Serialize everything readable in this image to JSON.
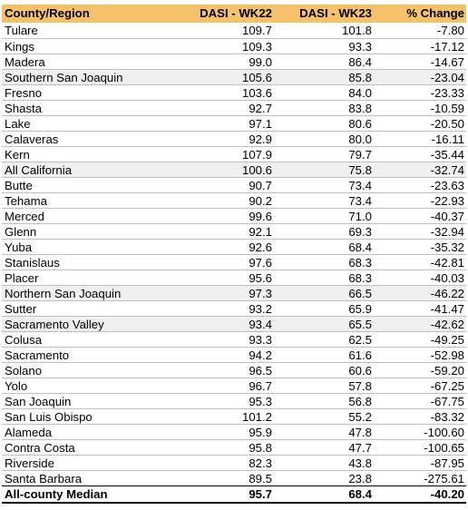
{
  "table": {
    "headers": [
      "County/Region",
      "DASI - WK22",
      "DASI - WK23",
      "% Change"
    ],
    "rows": [
      {
        "name": "Tulare",
        "wk22": "109.7",
        "wk23": "101.8",
        "change": "-7.80",
        "highlight": false
      },
      {
        "name": "Kings",
        "wk22": "109.3",
        "wk23": "93.3",
        "change": "-17.12",
        "highlight": false
      },
      {
        "name": "Madera",
        "wk22": "99.0",
        "wk23": "86.4",
        "change": "-14.67",
        "highlight": false
      },
      {
        "name": "Southern San Joaquin",
        "wk22": "105.6",
        "wk23": "85.8",
        "change": "-23.04",
        "highlight": true
      },
      {
        "name": "Fresno",
        "wk22": "103.6",
        "wk23": "84.0",
        "change": "-23.33",
        "highlight": false
      },
      {
        "name": "Shasta",
        "wk22": "92.7",
        "wk23": "83.8",
        "change": "-10.59",
        "highlight": false
      },
      {
        "name": "Lake",
        "wk22": "97.1",
        "wk23": "80.6",
        "change": "-20.50",
        "highlight": false
      },
      {
        "name": "Calaveras",
        "wk22": "92.9",
        "wk23": "80.0",
        "change": "-16.11",
        "highlight": false
      },
      {
        "name": "Kern",
        "wk22": "107.9",
        "wk23": "79.7",
        "change": "-35.44",
        "highlight": false
      },
      {
        "name": "All California",
        "wk22": "100.6",
        "wk23": "75.8",
        "change": "-32.74",
        "highlight": true
      },
      {
        "name": "Butte",
        "wk22": "90.7",
        "wk23": "73.4",
        "change": "-23.63",
        "highlight": false
      },
      {
        "name": "Tehama",
        "wk22": "90.2",
        "wk23": "73.4",
        "change": "-22.93",
        "highlight": false
      },
      {
        "name": "Merced",
        "wk22": "99.6",
        "wk23": "71.0",
        "change": "-40.37",
        "highlight": false
      },
      {
        "name": "Glenn",
        "wk22": "92.1",
        "wk23": "69.3",
        "change": "-32.94",
        "highlight": false
      },
      {
        "name": "Yuba",
        "wk22": "92.6",
        "wk23": "68.4",
        "change": "-35.32",
        "highlight": false
      },
      {
        "name": "Stanislaus",
        "wk22": "97.6",
        "wk23": "68.3",
        "change": "-42.81",
        "highlight": false
      },
      {
        "name": "Placer",
        "wk22": "95.6",
        "wk23": "68.3",
        "change": "-40.03",
        "highlight": false
      },
      {
        "name": "Northern San Joaquin",
        "wk22": "97.3",
        "wk23": "66.5",
        "change": "-46.22",
        "highlight": true
      },
      {
        "name": "Sutter",
        "wk22": "93.2",
        "wk23": "65.9",
        "change": "-41.47",
        "highlight": false
      },
      {
        "name": "Sacramento Valley",
        "wk22": "93.4",
        "wk23": "65.5",
        "change": "-42.62",
        "highlight": true
      },
      {
        "name": "Colusa",
        "wk22": "93.3",
        "wk23": "62.5",
        "change": "-49.25",
        "highlight": false
      },
      {
        "name": "Sacramento",
        "wk22": "94.2",
        "wk23": "61.6",
        "change": "-52.98",
        "highlight": false
      },
      {
        "name": "Solano",
        "wk22": "96.5",
        "wk23": "60.6",
        "change": "-59.20",
        "highlight": false
      },
      {
        "name": "Yolo",
        "wk22": "96.7",
        "wk23": "57.8",
        "change": "-67.25",
        "highlight": false
      },
      {
        "name": "San Joaquin",
        "wk22": "95.3",
        "wk23": "56.8",
        "change": "-67.75",
        "highlight": false
      },
      {
        "name": "San Luis Obispo",
        "wk22": "101.2",
        "wk23": "55.2",
        "change": "-83.32",
        "highlight": false
      },
      {
        "name": "Alameda",
        "wk22": "95.9",
        "wk23": "47.8",
        "change": "-100.60",
        "highlight": false
      },
      {
        "name": "Contra Costa",
        "wk22": "95.8",
        "wk23": "47.7",
        "change": "-100.65",
        "highlight": false
      },
      {
        "name": "Riverside",
        "wk22": "82.3",
        "wk23": "43.8",
        "change": "-87.95",
        "highlight": false
      },
      {
        "name": "Santa Barbara",
        "wk22": "89.5",
        "wk23": "23.8",
        "change": "-275.61",
        "highlight": false
      }
    ],
    "footer": {
      "name": "All-county Median",
      "wk22": "95.7",
      "wk23": "68.4",
      "change": "-40.20"
    },
    "colors": {
      "header_bg": "#f5c26b",
      "highlight_bg": "#efefef"
    }
  }
}
